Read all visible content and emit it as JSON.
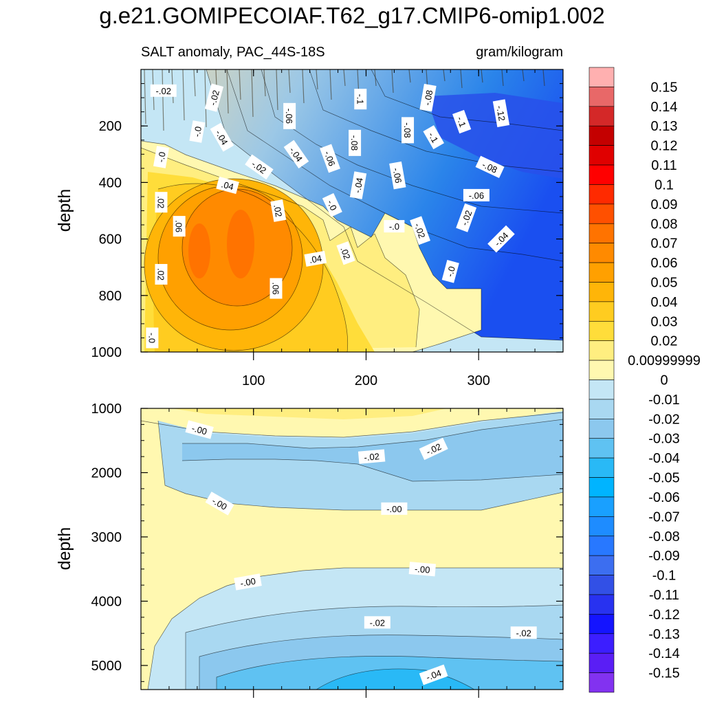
{
  "chart_data": {
    "type": "contour",
    "title": "g.e21.GOMIPECOIAF.T62_g17.CMIP6-omip1.002",
    "subtitle_left": "SALT anomaly, PAC_44S-18S",
    "subtitle_right": "gram/kilogram",
    "colorbar": {
      "levels": [
        "0.15",
        "0.14",
        "0.13",
        "0.12",
        "0.11",
        "0.1",
        "0.09",
        "0.08",
        "0.07",
        "0.06",
        "0.05",
        "0.04",
        "0.03",
        "0.02",
        "0.00999999",
        "0",
        "-0.01",
        "-0.02",
        "-0.03",
        "-0.04",
        "-0.05",
        "-0.06",
        "-0.07",
        "-0.08",
        "-0.09",
        "-0.1",
        "-0.11",
        "-0.12",
        "-0.13",
        "-0.14",
        "-0.15"
      ],
      "colors": [
        "#FFB0B0",
        "#E86868",
        "#D42828",
        "#C40000",
        "#E00000",
        "#FF0000",
        "#FF2A00",
        "#FF5000",
        "#FF7300",
        "#FF8A00",
        "#FFA000",
        "#FFB508",
        "#FFCC20",
        "#FFDD3A",
        "#FFEE80",
        "#FFF8B0",
        "#C4E6F5",
        "#A9D8F1",
        "#8CC8EE",
        "#5FC2F2",
        "#29B9F6",
        "#00B4FF",
        "#19A0FF",
        "#1E8CFF",
        "#2878FF",
        "#3C6EF0",
        "#3250E6",
        "#2832F0",
        "#1414FF",
        "#3C1EFF",
        "#5A1EF5",
        "#8232F0"
      ]
    },
    "panels": [
      {
        "name": "upper",
        "ylabel": "depth",
        "yticks": [
          200,
          400,
          600,
          800,
          1000
        ],
        "ylim": [
          0,
          1000
        ],
        "xticks": [
          100,
          200,
          300
        ],
        "xlim": [
          0,
          375
        ],
        "contour_labels": [
          {
            "text": "-.02",
            "x": 20,
            "y": 75,
            "rot": 0
          },
          {
            "text": "-.02",
            "x": 65,
            "y": 100,
            "rot": -75
          },
          {
            "text": "-.0",
            "x": 50,
            "y": 220,
            "rot": -80
          },
          {
            "text": "-.04",
            "x": 72,
            "y": 240,
            "rot": 60
          },
          {
            "text": "-.06",
            "x": 132,
            "y": 165,
            "rot": 90
          },
          {
            "text": "-.1",
            "x": 195,
            "y": 105,
            "rot": 90
          },
          {
            "text": "-.08",
            "x": 255,
            "y": 100,
            "rot": -80
          },
          {
            "text": "-.1",
            "x": 285,
            "y": 185,
            "rot": 70
          },
          {
            "text": "-.12",
            "x": 320,
            "y": 155,
            "rot": 80
          },
          {
            "text": "-.08",
            "x": 237,
            "y": 215,
            "rot": 90
          },
          {
            "text": "-.1",
            "x": 260,
            "y": 240,
            "rot": 60
          },
          {
            "text": "-.08",
            "x": 190,
            "y": 260,
            "rot": 90
          },
          {
            "text": "-.04",
            "x": 138,
            "y": 300,
            "rot": 55
          },
          {
            "text": "-.06",
            "x": 168,
            "y": 315,
            "rot": 70
          },
          {
            "text": "-.08",
            "x": 310,
            "y": 345,
            "rot": 25
          },
          {
            "text": "-.0",
            "x": 18,
            "y": 310,
            "rot": -80
          },
          {
            "text": "-.02",
            "x": 105,
            "y": 345,
            "rot": 35
          },
          {
            "text": "-.06",
            "x": 228,
            "y": 375,
            "rot": 80
          },
          {
            "text": "-.04",
            "x": 193,
            "y": 410,
            "rot": -80
          },
          {
            "text": ".04",
            "x": 77,
            "y": 410,
            "rot": 15
          },
          {
            "text": "-.06",
            "x": 298,
            "y": 445,
            "rot": 0
          },
          {
            "text": ".02",
            "x": 18,
            "y": 470,
            "rot": 90
          },
          {
            "text": "-.0",
            "x": 170,
            "y": 480,
            "rot": 65
          },
          {
            "text": ".02",
            "x": 122,
            "y": 500,
            "rot": 80
          },
          {
            "text": "-.02",
            "x": 289,
            "y": 525,
            "rot": -70
          },
          {
            "text": "-.0",
            "x": 225,
            "y": 555,
            "rot": 0
          },
          {
            "text": ".06",
            "x": 34,
            "y": 555,
            "rot": 90
          },
          {
            "text": "-.02",
            "x": 248,
            "y": 570,
            "rot": 70
          },
          {
            "text": "-.04",
            "x": 320,
            "y": 600,
            "rot": -45
          },
          {
            "text": ".02",
            "x": 182,
            "y": 650,
            "rot": 70
          },
          {
            "text": ".04",
            "x": 155,
            "y": 670,
            "rot": -10
          },
          {
            "text": "-.0",
            "x": 275,
            "y": 715,
            "rot": -75
          },
          {
            "text": ".02",
            "x": 18,
            "y": 725,
            "rot": 90
          },
          {
            "text": ".06",
            "x": 120,
            "y": 775,
            "rot": 90
          },
          {
            "text": "-.0",
            "x": 10,
            "y": 950,
            "rot": 90
          }
        ]
      },
      {
        "name": "lower",
        "ylabel": "depth",
        "yticks": [
          1000,
          2000,
          3000,
          4000,
          5000
        ],
        "ylim": [
          1000,
          5375
        ],
        "xlim": [
          0,
          375
        ],
        "contour_labels": [
          {
            "text": "-.00",
            "x": 52,
            "y": 1330,
            "rot": 15
          },
          {
            "text": "-.02",
            "x": 260,
            "y": 1630,
            "rot": -25
          },
          {
            "text": "-.02",
            "x": 205,
            "y": 1750,
            "rot": -5
          },
          {
            "text": "-.00",
            "x": 70,
            "y": 2480,
            "rot": 30
          },
          {
            "text": "-.00",
            "x": 225,
            "y": 2560,
            "rot": 0
          },
          {
            "text": "-.00",
            "x": 250,
            "y": 3500,
            "rot": 5
          },
          {
            "text": "-.00",
            "x": 95,
            "y": 3700,
            "rot": -10
          },
          {
            "text": "-.02",
            "x": 210,
            "y": 4330,
            "rot": 0
          },
          {
            "text": "-.02",
            "x": 340,
            "y": 4490,
            "rot": 0
          },
          {
            "text": "-.04",
            "x": 260,
            "y": 5145,
            "rot": -20
          }
        ]
      }
    ]
  }
}
